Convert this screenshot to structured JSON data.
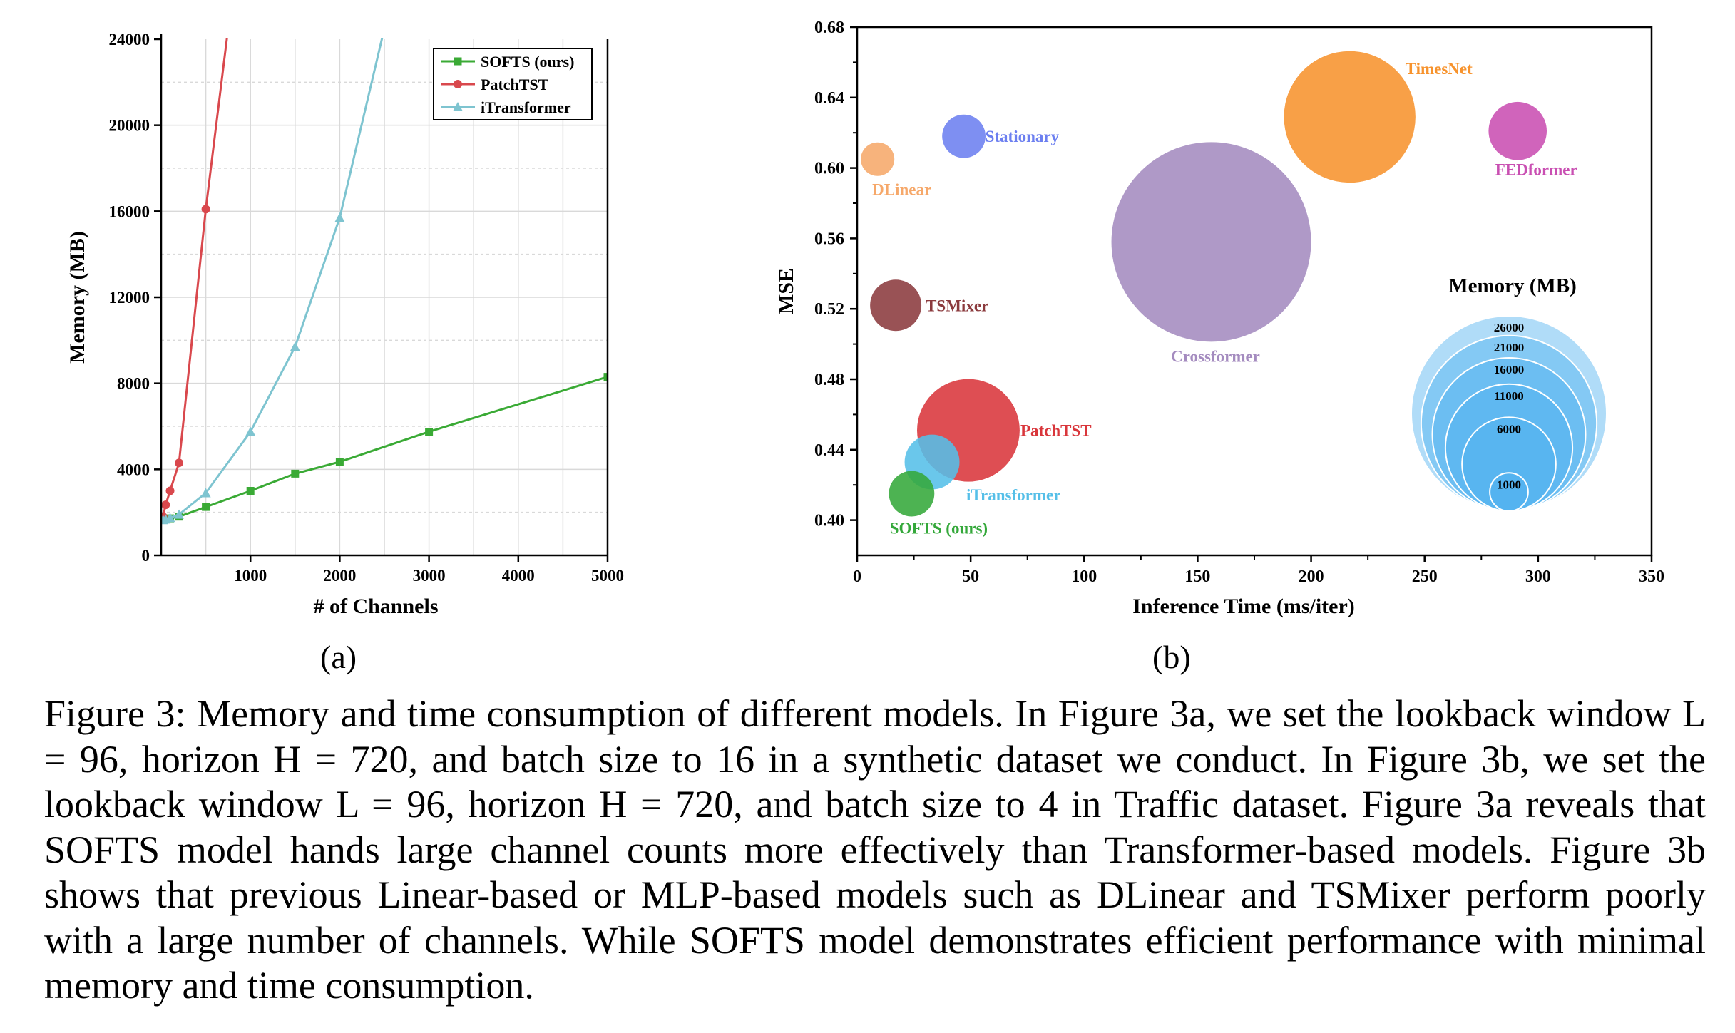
{
  "chart_data": [
    {
      "type": "line",
      "panel_label": "(a)",
      "xlabel": "# of Channels",
      "ylabel": "Memory (MB)",
      "xlim": [
        0,
        5000
      ],
      "ylim": [
        0,
        24000
      ],
      "xticks": [
        1000,
        2000,
        3000,
        4000,
        5000
      ],
      "yticks": [
        0,
        4000,
        8000,
        12000,
        16000,
        20000,
        24000
      ],
      "grid": true,
      "legend_position": "top-right",
      "series": [
        {
          "name": "SOFTS (ours)",
          "color": "#3aaa35",
          "marker": "square",
          "x": [
            21,
            50,
            100,
            200,
            500,
            1000,
            1500,
            2000,
            3000,
            5000
          ],
          "y": [
            1650,
            1680,
            1720,
            1800,
            2250,
            3000,
            3800,
            4350,
            5750,
            8300
          ]
        },
        {
          "name": "PatchTST",
          "color": "#d9484d",
          "marker": "circle",
          "x": [
            21,
            50,
            100,
            200,
            500,
            750
          ],
          "y": [
            1800,
            2350,
            3000,
            4300,
            16100,
            24500
          ]
        },
        {
          "name": "iTransformer",
          "color": "#7ec4d0",
          "marker": "triangle",
          "x": [
            21,
            50,
            100,
            200,
            500,
            1000,
            1500,
            2000,
            2500
          ],
          "y": [
            1650,
            1680,
            1750,
            1900,
            2900,
            5750,
            9700,
            15700,
            24500
          ]
        }
      ]
    },
    {
      "type": "scatter",
      "panel_label": "(b)",
      "xlabel": "Inference Time (ms/iter)",
      "ylabel": "MSE",
      "xlim": [
        0,
        350
      ],
      "ylim": [
        0.38,
        0.68
      ],
      "xticks": [
        0,
        50,
        100,
        150,
        200,
        250,
        300,
        350
      ],
      "yticks": [
        0.4,
        0.44,
        0.48,
        0.52,
        0.56,
        0.6,
        0.64,
        0.68
      ],
      "grid": false,
      "size_legend": {
        "title": "Memory (MB)",
        "values": [
          26000,
          21000,
          16000,
          11000,
          6000,
          1000
        ],
        "labels": [
          "26000",
          "21000",
          "16000",
          "11000",
          "6000",
          "1000"
        ],
        "color": "#4fb2ef"
      },
      "points": [
        {
          "name": "TimesNet",
          "x": 217,
          "y": 0.629,
          "memory": 9200,
          "color": "#f7932d"
        },
        {
          "name": "FEDformer",
          "x": 291,
          "y": 0.621,
          "memory": 1800,
          "color": "#c94fb2"
        },
        {
          "name": "Stationary",
          "x": 47,
          "y": 0.618,
          "memory": 1000,
          "color": "#6c7ff0"
        },
        {
          "name": "DLinear",
          "x": 9,
          "y": 0.605,
          "memory": 600,
          "color": "#f6a86a"
        },
        {
          "name": "Crossformer",
          "x": 156,
          "y": 0.558,
          "memory": 21200,
          "color": "#a48bbf"
        },
        {
          "name": "TSMixer",
          "x": 17,
          "y": 0.522,
          "memory": 1400,
          "color": "#8b3a3d"
        },
        {
          "name": "PatchTST",
          "x": 49,
          "y": 0.451,
          "memory": 5600,
          "color": "#d9363b"
        },
        {
          "name": "iTransformer",
          "x": 33,
          "y": 0.433,
          "memory": 1600,
          "color": "#55bfe8"
        },
        {
          "name": "SOFTS (ours)",
          "x": 24,
          "y": 0.415,
          "memory": 1100,
          "color": "#34a83a"
        }
      ]
    }
  ],
  "caption": "Figure 3: Memory and time consumption of different models. In Figure 3a, we set the lookback window L = 96, horizon H = 720, and batch size to 16 in a synthetic dataset we conduct. In Figure 3b, we set the lookback window L = 96, horizon H = 720, and batch size to 4 in Traffic dataset. Figure 3a reveals that SOFTS model hands large channel counts more effectively than Transformer-based models. Figure 3b shows that previous Linear-based or MLP-based models such as DLinear and TSMixer perform poorly with a large number of channels. While SOFTS model demonstrates efficient performance with minimal memory and time consumption."
}
